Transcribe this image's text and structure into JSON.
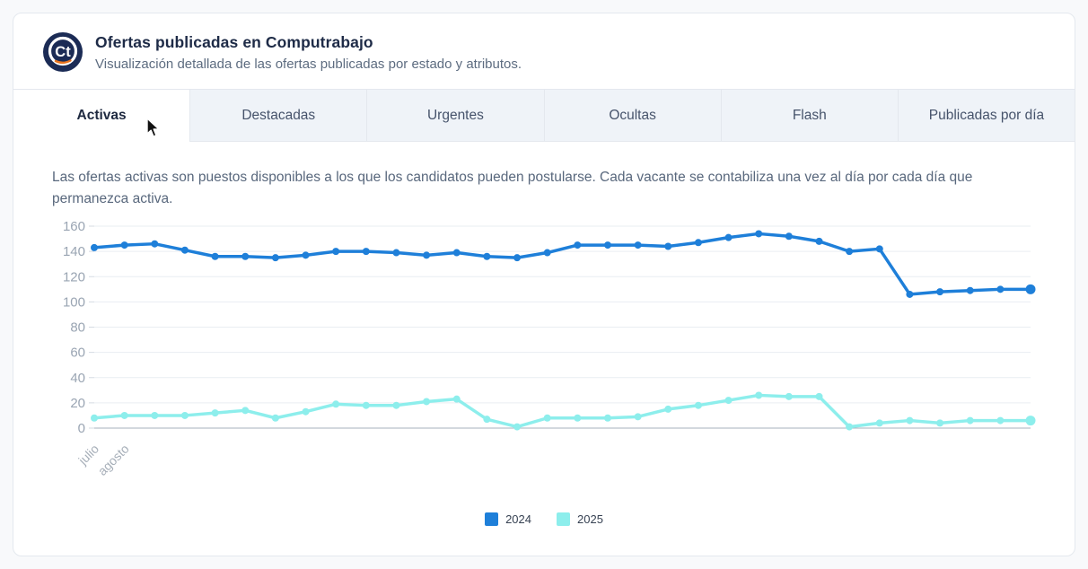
{
  "header": {
    "logo_text": "Ct",
    "title": "Ofertas publicadas en Computrabajo",
    "subtitle": "Visualización detallada de las ofertas publicadas por estado y atributos."
  },
  "tabs": [
    {
      "label": "Activas",
      "active": true
    },
    {
      "label": "Destacadas",
      "active": false
    },
    {
      "label": "Urgentes",
      "active": false
    },
    {
      "label": "Ocultas",
      "active": false
    },
    {
      "label": "Flash",
      "active": false
    },
    {
      "label": "Publicadas por día",
      "active": false
    }
  ],
  "description": "Las ofertas activas son puestos disponibles a los que los candidatos pueden postularse. Cada vacante se contabiliza una vez al día por cada día que permanezca activa.",
  "colors": {
    "brand_navy": "#1b2b55",
    "brand_orange": "#e8731f",
    "series_2024": "#1e7fd9",
    "series_2025": "#8deeec",
    "grid": "#e9edf2",
    "axis_line": "#a7b1bc",
    "tick_label": "#9aa5b3"
  },
  "chart_data": {
    "type": "line",
    "x_tick_labels": [
      "julio",
      "agosto"
    ],
    "series": [
      {
        "name": "2024",
        "color": "#1e7fd9",
        "values": [
          143,
          145,
          146,
          141,
          136,
          136,
          135,
          137,
          140,
          140,
          139,
          137,
          139,
          136,
          135,
          139,
          145,
          145,
          145,
          144,
          147,
          151,
          154,
          152,
          148,
          140,
          142,
          106,
          108,
          109,
          110,
          110
        ]
      },
      {
        "name": "2025",
        "color": "#8deeec",
        "values": [
          8,
          10,
          10,
          10,
          12,
          14,
          8,
          13,
          19,
          18,
          18,
          21,
          23,
          7,
          1,
          8,
          8,
          8,
          9,
          15,
          18,
          22,
          26,
          25,
          25,
          1,
          4,
          6,
          4,
          6,
          6,
          6
        ]
      }
    ],
    "ylim": [
      0,
      160
    ],
    "y_step": 20,
    "grid": true,
    "legend_position": "bottom"
  }
}
